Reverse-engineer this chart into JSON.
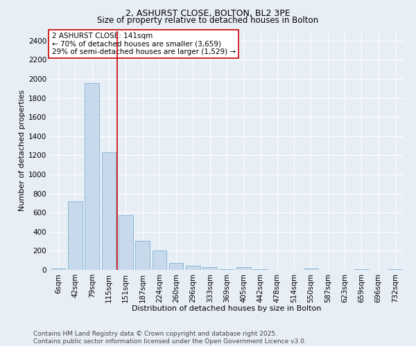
{
  "title1": "2, ASHURST CLOSE, BOLTON, BL2 3PE",
  "title2": "Size of property relative to detached houses in Bolton",
  "xlabel": "Distribution of detached houses by size in Bolton",
  "ylabel": "Number of detached properties",
  "categories": [
    "6sqm",
    "42sqm",
    "79sqm",
    "115sqm",
    "151sqm",
    "187sqm",
    "224sqm",
    "260sqm",
    "296sqm",
    "333sqm",
    "369sqm",
    "405sqm",
    "442sqm",
    "478sqm",
    "514sqm",
    "550sqm",
    "587sqm",
    "623sqm",
    "659sqm",
    "696sqm",
    "732sqm"
  ],
  "values": [
    15,
    715,
    1960,
    1235,
    575,
    305,
    200,
    75,
    40,
    30,
    5,
    30,
    5,
    0,
    0,
    15,
    0,
    0,
    5,
    0,
    5
  ],
  "bar_color": "#c9d9ec",
  "bar_edge_color": "#7ab3d4",
  "vline_color": "#cc0000",
  "vline_x": 3.5,
  "annotation_text": "2 ASHURST CLOSE: 141sqm\n← 70% of detached houses are smaller (3,659)\n29% of semi-detached houses are larger (1,529) →",
  "annotation_box_facecolor": "#ffffff",
  "annotation_box_edgecolor": "#cc0000",
  "ylim": [
    0,
    2500
  ],
  "yticks": [
    0,
    200,
    400,
    600,
    800,
    1000,
    1200,
    1400,
    1600,
    1800,
    2000,
    2200,
    2400
  ],
  "bg_color": "#e8eef5",
  "footer": "Contains HM Land Registry data © Crown copyright and database right 2025.\nContains public sector information licensed under the Open Government Licence v3.0.",
  "title1_fontsize": 9,
  "title2_fontsize": 8.5,
  "xlabel_fontsize": 8,
  "ylabel_fontsize": 8,
  "tick_fontsize": 7.5,
  "annotation_fontsize": 7.5,
  "footer_fontsize": 6.5
}
